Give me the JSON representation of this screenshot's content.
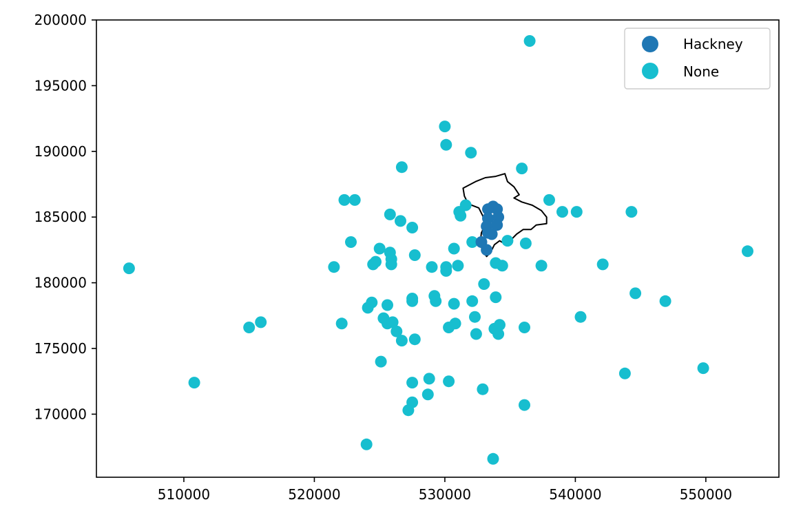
{
  "chart_data": {
    "type": "scatter",
    "title": "",
    "xlabel": "",
    "ylabel": "",
    "xlim": [
      503300,
      555600
    ],
    "ylim": [
      165200,
      200000
    ],
    "xticks": [
      510000,
      520000,
      530000,
      540000,
      550000
    ],
    "yticks": [
      170000,
      175000,
      180000,
      185000,
      190000,
      195000,
      200000
    ],
    "xtick_labels": [
      "510000",
      "520000",
      "530000",
      "540000",
      "550000"
    ],
    "ytick_labels": [
      "170000",
      "175000",
      "180000",
      "185000",
      "190000",
      "195000",
      "200000"
    ],
    "grid": false,
    "legend_position": "top-right",
    "legend": [
      {
        "label": "Hackney",
        "color": "#1f77b4"
      },
      {
        "label": "None",
        "color": "#17becf"
      }
    ],
    "boundary": {
      "name": "Hackney",
      "stroke": "#000000",
      "polygon": [
        [
          532350,
          187700
        ],
        [
          533100,
          188000
        ],
        [
          533900,
          188100
        ],
        [
          534600,
          188300
        ],
        [
          534800,
          187700
        ],
        [
          535300,
          187300
        ],
        [
          535700,
          186700
        ],
        [
          535300,
          186450
        ],
        [
          535900,
          186150
        ],
        [
          536700,
          185900
        ],
        [
          537400,
          185500
        ],
        [
          537800,
          185000
        ],
        [
          537800,
          184500
        ],
        [
          537000,
          184400
        ],
        [
          536600,
          184050
        ],
        [
          536000,
          184050
        ],
        [
          535500,
          183700
        ],
        [
          535000,
          183200
        ],
        [
          534700,
          182900
        ],
        [
          534200,
          183200
        ],
        [
          533800,
          182900
        ],
        [
          533500,
          182300
        ],
        [
          533200,
          182000
        ],
        [
          532900,
          182400
        ],
        [
          532700,
          183000
        ],
        [
          532800,
          183800
        ],
        [
          533100,
          184400
        ],
        [
          532900,
          185100
        ],
        [
          532600,
          185700
        ],
        [
          531800,
          186000
        ],
        [
          531500,
          186600
        ],
        [
          531400,
          187200
        ]
      ]
    },
    "series": [
      {
        "name": "Hackney",
        "color": "#1f77b4",
        "points": [
          [
            533700,
            185800
          ],
          [
            534000,
            185600
          ],
          [
            533300,
            185600
          ],
          [
            534100,
            185000
          ],
          [
            533300,
            184900
          ],
          [
            534000,
            184400
          ],
          [
            533200,
            184300
          ],
          [
            533300,
            183800
          ],
          [
            533600,
            183700
          ],
          [
            532800,
            183100
          ],
          [
            533200,
            182500
          ]
        ]
      },
      {
        "name": "None",
        "color": "#17becf",
        "points": [
          [
            536500,
            198400
          ],
          [
            530000,
            191900
          ],
          [
            530100,
            190500
          ],
          [
            532000,
            189900
          ],
          [
            526700,
            188800
          ],
          [
            535900,
            188700
          ],
          [
            522300,
            186300
          ],
          [
            523100,
            186300
          ],
          [
            531600,
            185900
          ],
          [
            531100,
            185400
          ],
          [
            531200,
            185100
          ],
          [
            538000,
            186300
          ],
          [
            539000,
            185400
          ],
          [
            540100,
            185400
          ],
          [
            544300,
            185400
          ],
          [
            525800,
            185200
          ],
          [
            526600,
            184700
          ],
          [
            527500,
            184200
          ],
          [
            522800,
            183100
          ],
          [
            532100,
            183100
          ],
          [
            534800,
            183200
          ],
          [
            536200,
            183000
          ],
          [
            525000,
            182600
          ],
          [
            530700,
            182600
          ],
          [
            525800,
            182300
          ],
          [
            527700,
            182100
          ],
          [
            553200,
            182400
          ],
          [
            505800,
            181100
          ],
          [
            521500,
            181200
          ],
          [
            524700,
            181600
          ],
          [
            524500,
            181400
          ],
          [
            525900,
            181800
          ],
          [
            525900,
            181400
          ],
          [
            529000,
            181200
          ],
          [
            530100,
            181200
          ],
          [
            530100,
            180900
          ],
          [
            531000,
            181300
          ],
          [
            533900,
            181500
          ],
          [
            534400,
            181300
          ],
          [
            537400,
            181300
          ],
          [
            542100,
            181400
          ],
          [
            533000,
            179900
          ],
          [
            524100,
            178100
          ],
          [
            524400,
            178500
          ],
          [
            525600,
            178300
          ],
          [
            527500,
            178800
          ],
          [
            527500,
            178600
          ],
          [
            529200,
            179000
          ],
          [
            529300,
            178600
          ],
          [
            530700,
            178400
          ],
          [
            532100,
            178600
          ],
          [
            533900,
            178900
          ],
          [
            544600,
            179200
          ],
          [
            546900,
            178600
          ],
          [
            540400,
            177400
          ],
          [
            515900,
            177000
          ],
          [
            515000,
            176600
          ],
          [
            522100,
            176900
          ],
          [
            525300,
            177300
          ],
          [
            525600,
            176900
          ],
          [
            526000,
            177000
          ],
          [
            526300,
            176300
          ],
          [
            532300,
            177400
          ],
          [
            530800,
            176900
          ],
          [
            530300,
            176600
          ],
          [
            532400,
            176100
          ],
          [
            533800,
            176500
          ],
          [
            534200,
            176800
          ],
          [
            534100,
            176100
          ],
          [
            536100,
            176600
          ],
          [
            526700,
            175600
          ],
          [
            527700,
            175700
          ],
          [
            525100,
            174000
          ],
          [
            510800,
            172400
          ],
          [
            543800,
            173100
          ],
          [
            549800,
            173500
          ],
          [
            527500,
            172400
          ],
          [
            528800,
            172700
          ],
          [
            530300,
            172500
          ],
          [
            532900,
            171900
          ],
          [
            528700,
            171500
          ],
          [
            527500,
            170900
          ],
          [
            527200,
            170300
          ],
          [
            536100,
            170700
          ],
          [
            524000,
            167700
          ],
          [
            533700,
            166600
          ]
        ]
      }
    ]
  }
}
